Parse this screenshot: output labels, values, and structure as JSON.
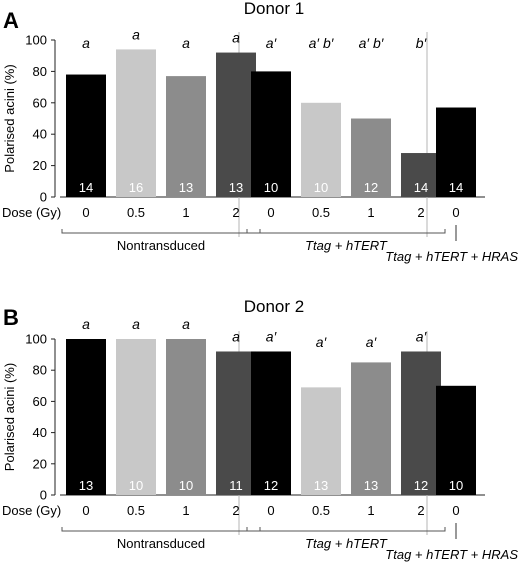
{
  "chart_data": [
    {
      "panel": "A",
      "type": "bar",
      "title": "Donor 1",
      "ylabel": "Polarised acini (%)",
      "xlabel": "Dose (Gy)",
      "ylim": [
        0,
        100
      ],
      "yticks": [
        0,
        20,
        40,
        60,
        80,
        100
      ],
      "groups": [
        {
          "name": "Nontransduced",
          "italic": false,
          "bars": [
            {
              "dose": "0",
              "value": 78,
              "color": "#000000",
              "n": "14",
              "sig": "a"
            },
            {
              "dose": "0.5",
              "value": 94,
              "color": "#c8c8c8",
              "n": "16",
              "sig": "a"
            },
            {
              "dose": "1",
              "value": 77,
              "color": "#8c8c8c",
              "n": "13",
              "sig": "a"
            },
            {
              "dose": "2",
              "value": 92,
              "color": "#4a4a4a",
              "n": "13",
              "sig": "a"
            }
          ]
        },
        {
          "name": "Ttag + hTERT",
          "italic": true,
          "bars": [
            {
              "dose": "0",
              "value": 80,
              "color": "#000000",
              "n": "10",
              "sig": "a′"
            },
            {
              "dose": "0.5",
              "value": 60,
              "color": "#c8c8c8",
              "n": "10",
              "sig": "a′ b′"
            },
            {
              "dose": "1",
              "value": 50,
              "color": "#8c8c8c",
              "n": "12",
              "sig": "a′ b′"
            },
            {
              "dose": "2",
              "value": 28,
              "color": "#4a4a4a",
              "n": "14",
              "sig": "b′"
            }
          ]
        },
        {
          "name": "Ttag + hTERT + HRAS",
          "italic": true,
          "bars": [
            {
              "dose": "0",
              "value": 57,
              "color": "#000000",
              "n": "14",
              "sig": ""
            }
          ]
        }
      ]
    },
    {
      "panel": "B",
      "type": "bar",
      "title": "Donor 2",
      "ylabel": "Polarised acini (%)",
      "xlabel": "Dose (Gy)",
      "ylim": [
        0,
        100
      ],
      "yticks": [
        0,
        20,
        40,
        60,
        80,
        100
      ],
      "groups": [
        {
          "name": "Nontransduced",
          "italic": false,
          "bars": [
            {
              "dose": "0",
              "value": 100,
              "color": "#000000",
              "n": "13",
              "sig": "a"
            },
            {
              "dose": "0.5",
              "value": 100,
              "color": "#c8c8c8",
              "n": "10",
              "sig": "a"
            },
            {
              "dose": "1",
              "value": 100,
              "color": "#8c8c8c",
              "n": "10",
              "sig": "a"
            },
            {
              "dose": "2",
              "value": 92,
              "color": "#4a4a4a",
              "n": "11",
              "sig": "a"
            }
          ]
        },
        {
          "name": "Ttag + hTERT",
          "italic": true,
          "bars": [
            {
              "dose": "0",
              "value": 92,
              "color": "#000000",
              "n": "12",
              "sig": "a′"
            },
            {
              "dose": "0.5",
              "value": 69,
              "color": "#c8c8c8",
              "n": "13",
              "sig": "a′"
            },
            {
              "dose": "1",
              "value": 85,
              "color": "#8c8c8c",
              "n": "13",
              "sig": "a′"
            },
            {
              "dose": "2",
              "value": 92,
              "color": "#4a4a4a",
              "n": "12",
              "sig": "a′"
            }
          ]
        },
        {
          "name": "Ttag + hTERT + HRAS",
          "italic": true,
          "bars": [
            {
              "dose": "0",
              "value": 70,
              "color": "#000000",
              "n": "10",
              "sig": ""
            }
          ]
        }
      ]
    }
  ]
}
